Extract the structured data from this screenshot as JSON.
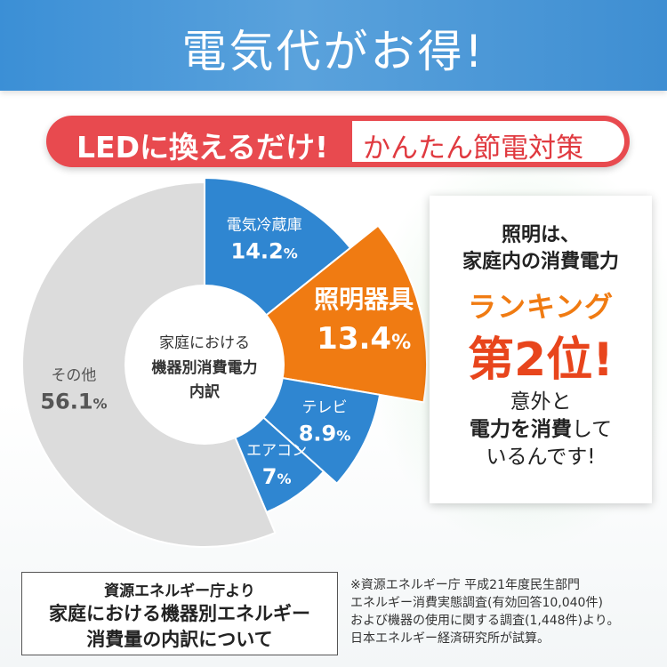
{
  "header": {
    "title": "電気代がお得!"
  },
  "subheadline": {
    "left": "LEDに換えるだけ!",
    "right": "かんたん節電対策"
  },
  "chart_data": {
    "type": "pie",
    "title": "家庭における機器別消費電力内訳",
    "center_label": [
      "家庭における",
      "機器別消費電力",
      "内訳"
    ],
    "slices": [
      {
        "label": "電気冷蔵庫",
        "value": 14.2,
        "value_label": "14.2",
        "unit": "%",
        "color": "#2f86d1",
        "exploded": false
      },
      {
        "label": "照明器具",
        "value": 13.4,
        "value_label": "13.4",
        "unit": "%",
        "color": "#f07b12",
        "exploded": true
      },
      {
        "label": "テレビ",
        "value": 8.9,
        "value_label": "8.9",
        "unit": "%",
        "color": "#2f86d1",
        "exploded": false
      },
      {
        "label": "エアコン",
        "value": 7,
        "value_label": "7",
        "unit": "%",
        "color": "#2f86d1",
        "exploded": false
      },
      {
        "label": "その他",
        "value": 56.1,
        "value_label": "56.1",
        "unit": "%",
        "color": "#dcdcdc",
        "exploded": false
      }
    ]
  },
  "callout": {
    "line1": "照明は、",
    "line2": "家庭内の消費電力",
    "line3": "ランキング",
    "line4": "第2位!",
    "line5": "意外と",
    "line6_bold": "電力を消費",
    "line6_rest": "して",
    "line7": "いるんです!"
  },
  "source": {
    "line1": "資源エネルギー庁より",
    "line2": "家庭における機器別エネルギー",
    "line3": "消費量の内訳について"
  },
  "footnote": [
    "※資源エネルギー庁 平成21年度民生部門",
    "エネルギー消費実態調査(有効回答10,040件)",
    "および機器の使用に関する調査(1,448件)より。",
    "日本エネルギー経済研究所が試算。"
  ]
}
